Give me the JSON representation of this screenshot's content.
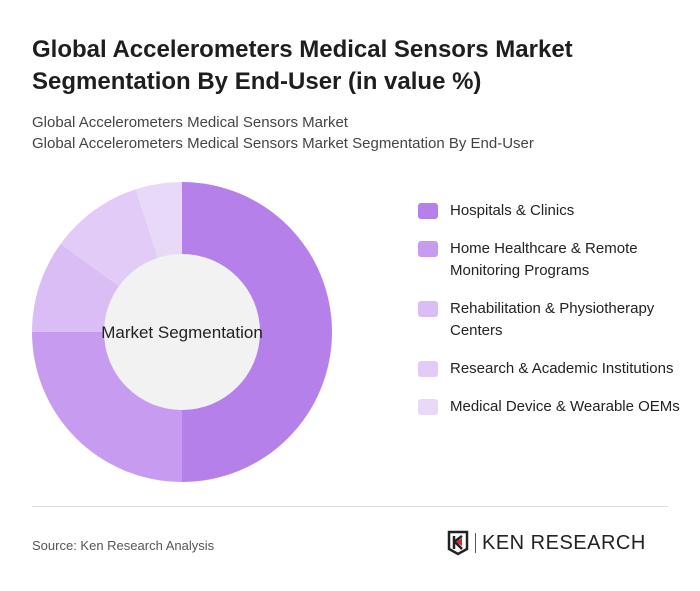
{
  "title": "Global Accelerometers Medical Sensors Market Segmentation By End-User (in value %)",
  "subtitle1": "Global Accelerometers Medical Sensors Market",
  "subtitle2": "Global Accelerometers Medical Sensors Market Segmentation By End-User",
  "source": "Source: Ken Research Analysis",
  "logo_text": "KEN RESEARCH",
  "chart_data": {
    "type": "pie",
    "variant": "donut",
    "center_label": "Market Segmentation",
    "legend_position": "right",
    "categories": [
      "Hospitals & Clinics",
      "Home Healthcare & Remote Monitoring Programs",
      "Rehabilitation & Physiotherapy Centers",
      "Research & Academic Institutions",
      "Medical Device & Wearable OEMs"
    ],
    "values": [
      50,
      25,
      10,
      10,
      5
    ],
    "colors": [
      "#b580ea",
      "#c79bef",
      "#d9bdf4",
      "#e2cbf6",
      "#e9d9f9"
    ]
  }
}
